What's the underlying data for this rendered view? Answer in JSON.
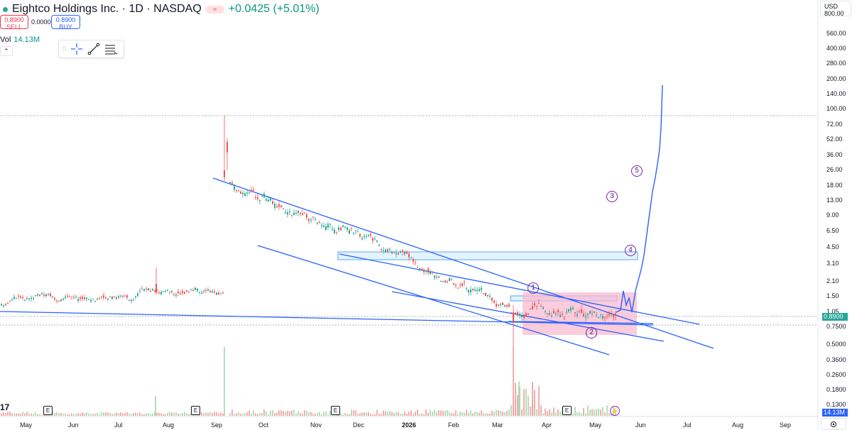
{
  "symbol": {
    "title": "Eightco Holdings Inc. · 1D · NASDAQ",
    "flag_icon": "≈",
    "change": "+0.0425 (+5.01%)"
  },
  "trade": {
    "sell_price": "0.8900",
    "sell_label": "SELL",
    "spread": "0.0000",
    "buy_price": "0.8900",
    "buy_label": "BUY"
  },
  "volume": {
    "label": "Vol",
    "value": "14.13M"
  },
  "collapse_glyph": "⌃",
  "toolbar": {
    "drag_handle": "⁞⁞",
    "tools": [
      "crosshair-icon",
      "trend-line-icon",
      "fib-icon"
    ]
  },
  "price_axis": {
    "currency": "USD",
    "currency_sub": "800.00",
    "labels": [
      "560.00",
      "400.00",
      "280.00",
      "200.00",
      "140.00",
      "100.00",
      "72.00",
      "52.00",
      "36.00",
      "26.00",
      "18.00",
      "13.00",
      "9.00",
      "6.50",
      "4.50",
      "3.10",
      "2.10",
      "1.50",
      "1.05",
      "0.7500",
      "0.5000",
      "0.3600",
      "0.2600",
      "0.1800",
      "0.1300"
    ],
    "last_price_tag": "0.8900",
    "volume_tag": "14.13M"
  },
  "time_axis": {
    "labels": [
      "May",
      "Jun",
      "Jul",
      "Aug",
      "Sep",
      "Oct",
      "Nov",
      "Dec",
      "2026",
      "Feb",
      "Mar",
      "Apr",
      "May",
      "Jun",
      "Jul",
      "Aug",
      "Sep"
    ],
    "bold_label": "2026"
  },
  "events": [
    "E",
    "E",
    "E",
    "E"
  ],
  "waves": [
    "1",
    "2",
    "3",
    "4",
    "5"
  ],
  "flash_icon": "⚡",
  "logo_text": "17",
  "colors": {
    "up": "#26a69a",
    "down": "#ef5350",
    "trend": "#2962ff",
    "wave": "#7b1fa2",
    "last_price": "#26a69a"
  }
}
